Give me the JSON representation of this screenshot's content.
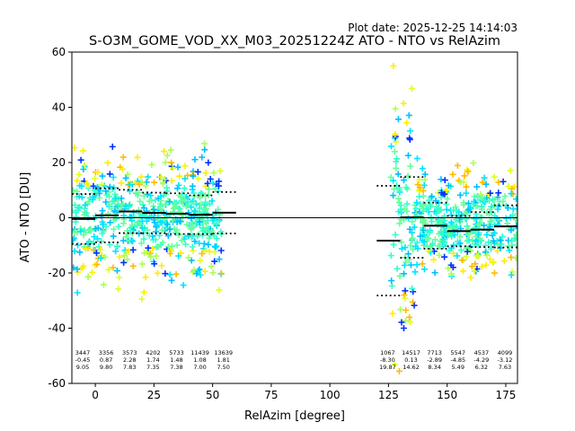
{
  "plot_date": "Plot date: 2025-12-25 14:14:03",
  "chart_data": {
    "type": "scatter",
    "title": "S-O3M_GOME_VOD_XX_M03_20251224Z ATO - NTO vs RelAzim",
    "xlabel": "RelAzim [degree]",
    "ylabel": "ATO - NTO [DU]",
    "xlim": [
      -10,
      180
    ],
    "ylim": [
      -60,
      60
    ],
    "xticks": [
      0,
      25,
      50,
      75,
      100,
      125,
      150,
      175
    ],
    "yticks": [
      -60,
      -40,
      -20,
      0,
      20,
      40,
      60
    ],
    "zero_line": 0,
    "marker": "+",
    "colors": {
      "blue": "#0033ff",
      "sky": "#00bfff",
      "cyan": "#00e5ff",
      "aqua": "#33ffcc",
      "mint": "#66ff99",
      "lime": "#aaff55",
      "yellowgreen": "#ddff22",
      "yellow": "#ffee00",
      "orange": "#ffbb00"
    },
    "clouds": [
      {
        "x_range": [
          -10,
          54
        ],
        "y_center": 0,
        "y_spread": 22
      },
      {
        "x_range": [
          126,
          136
        ],
        "y_center": 0,
        "y_spread": 52
      },
      {
        "x_range": [
          136,
          180
        ],
        "y_center": -2,
        "y_spread": 20
      }
    ],
    "bins": [
      {
        "x": [
          -10,
          0
        ],
        "mean": -0.45,
        "std": 9.05,
        "count": "3447",
        "mean_label": "-0.45",
        "std_label": "9.05"
      },
      {
        "x": [
          0,
          10
        ],
        "mean": 0.87,
        "std": 9.8,
        "count": "3356",
        "mean_label": "0.87",
        "std_label": "9.80"
      },
      {
        "x": [
          10,
          20
        ],
        "mean": 2.28,
        "std": 7.83,
        "count": "3573",
        "mean_label": "2.28",
        "std_label": "7.83"
      },
      {
        "x": [
          20,
          30
        ],
        "mean": 1.74,
        "std": 7.35,
        "count": "4202",
        "mean_label": "1.74",
        "std_label": "7.35"
      },
      {
        "x": [
          30,
          40
        ],
        "mean": 1.48,
        "std": 7.38,
        "count": "5733",
        "mean_label": "1.48",
        "std_label": "7.38"
      },
      {
        "x": [
          40,
          50
        ],
        "mean": 1.08,
        "std": 7.0,
        "count": "11439",
        "mean_label": "1.08",
        "std_label": "7.00"
      },
      {
        "x": [
          50,
          60
        ],
        "mean": 1.81,
        "std": 7.5,
        "count": "13639",
        "mean_label": "1.81",
        "std_label": "7.50"
      },
      {
        "x": [
          120,
          130
        ],
        "mean": -8.3,
        "std": 19.87,
        "count": "1067",
        "mean_label": "-8.30",
        "std_label": "19.87"
      },
      {
        "x": [
          130,
          140
        ],
        "mean": 0.13,
        "std": 14.62,
        "count": "14517",
        "mean_label": "0.13",
        "std_label": "14.62"
      },
      {
        "x": [
          140,
          150
        ],
        "mean": -2.89,
        "std": 8.34,
        "count": "7713",
        "mean_label": "-2.89",
        "std_label": "8.34"
      },
      {
        "x": [
          150,
          160
        ],
        "mean": -4.85,
        "std": 5.49,
        "count": "5547",
        "mean_label": "-4.85",
        "std_label": "5.49"
      },
      {
        "x": [
          160,
          170
        ],
        "mean": -4.29,
        "std": 6.32,
        "count": "4537",
        "mean_label": "-4.29",
        "std_label": "6.32"
      },
      {
        "x": [
          170,
          180
        ],
        "mean": -3.12,
        "std": 7.63,
        "count": "4099",
        "mean_label": "-3.12",
        "std_label": "7.63"
      }
    ]
  }
}
